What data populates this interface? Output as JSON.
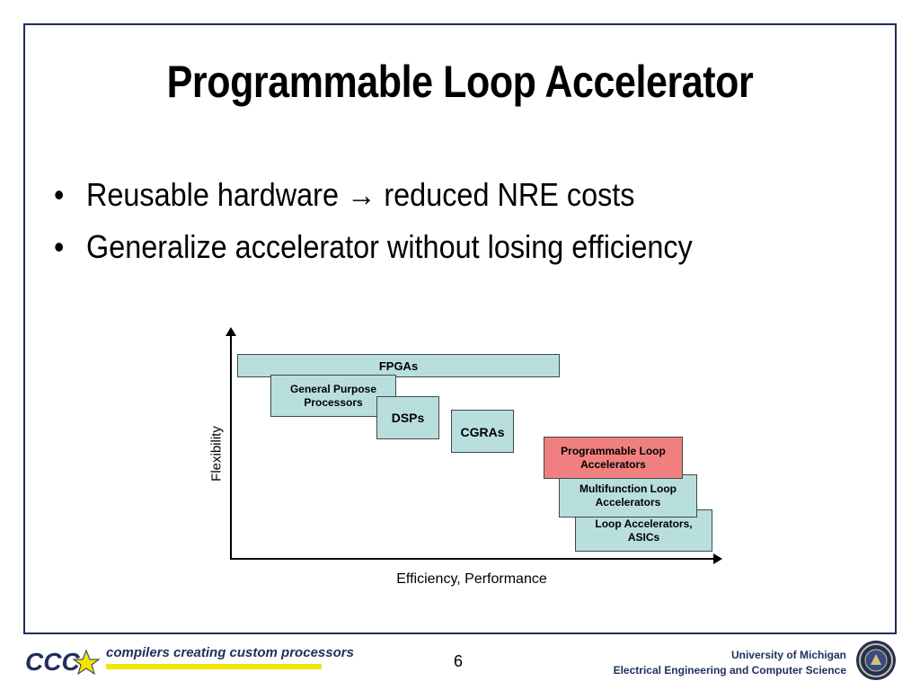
{
  "slide": {
    "title": "Programmable Loop Accelerator",
    "bullets": [
      {
        "symbol": "•",
        "text": "Reusable hardware → reduced NRE costs"
      },
      {
        "symbol": "•",
        "text": "Generalize accelerator without losing efficiency"
      }
    ]
  },
  "diagram": {
    "y_axis_label": "Flexibility",
    "x_axis_label": "Efficiency, Performance",
    "boxes": {
      "fpgas": "FPGAs",
      "gpp": "General Purpose Processors",
      "dsps": "DSPs",
      "cgras": "CGRAs",
      "pla": "Programmable Loop Accelerators",
      "mla": "Multifunction Loop Accelerators",
      "asics": "Loop Accelerators, ASICs"
    },
    "colors": {
      "box_fill": "#b9dede",
      "highlight_fill": "#f08080"
    }
  },
  "footer": {
    "logo_text": "CCC",
    "tagline": "compilers creating custom processors",
    "page_number": "6",
    "university": "University of Michigan",
    "department": "Electrical Engineering and Computer Science",
    "seal_icon": "university-seal-icon"
  }
}
